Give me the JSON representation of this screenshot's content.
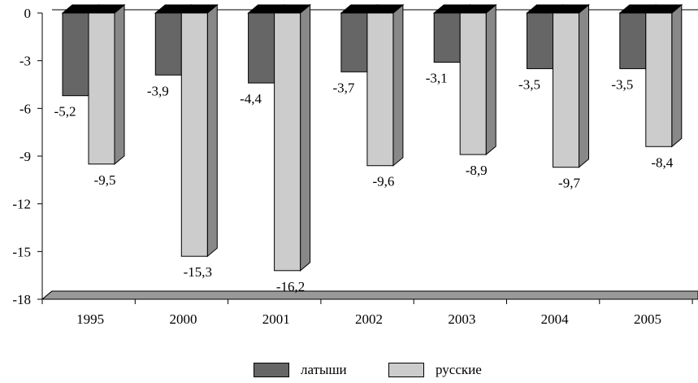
{
  "chart_data": {
    "type": "bar",
    "title": "",
    "xlabel": "",
    "ylabel": "",
    "categories": [
      "1995",
      "2000",
      "2001",
      "2002",
      "2003",
      "2004",
      "2005"
    ],
    "series": [
      {
        "name": "латыши",
        "values": [
          -5.2,
          -3.9,
          -4.4,
          -3.7,
          -3.1,
          -3.5,
          -3.5
        ],
        "labels": [
          "-5,2",
          "-3,9",
          "-4,4",
          "-3,7",
          "-3,1",
          "-3,5",
          "-3,5"
        ],
        "color": "#666666"
      },
      {
        "name": "русские",
        "values": [
          -9.5,
          -15.3,
          -16.2,
          -9.6,
          -8.9,
          -9.7,
          -8.4
        ],
        "labels": [
          "-9,5",
          "-15,3",
          "-16,2",
          "-9,6",
          "-8,9",
          "-9,7",
          "-8,4"
        ],
        "color": "#cccccc"
      }
    ],
    "ylim": [
      -18,
      0
    ],
    "yticks": [
      "0",
      "-3",
      "-6",
      "-9",
      "-12",
      "-15",
      "-18"
    ],
    "ytick_values": [
      0,
      -3,
      -6,
      -9,
      -12,
      -15,
      -18
    ],
    "grid": false,
    "legend_position": "bottom",
    "three_d": true
  }
}
